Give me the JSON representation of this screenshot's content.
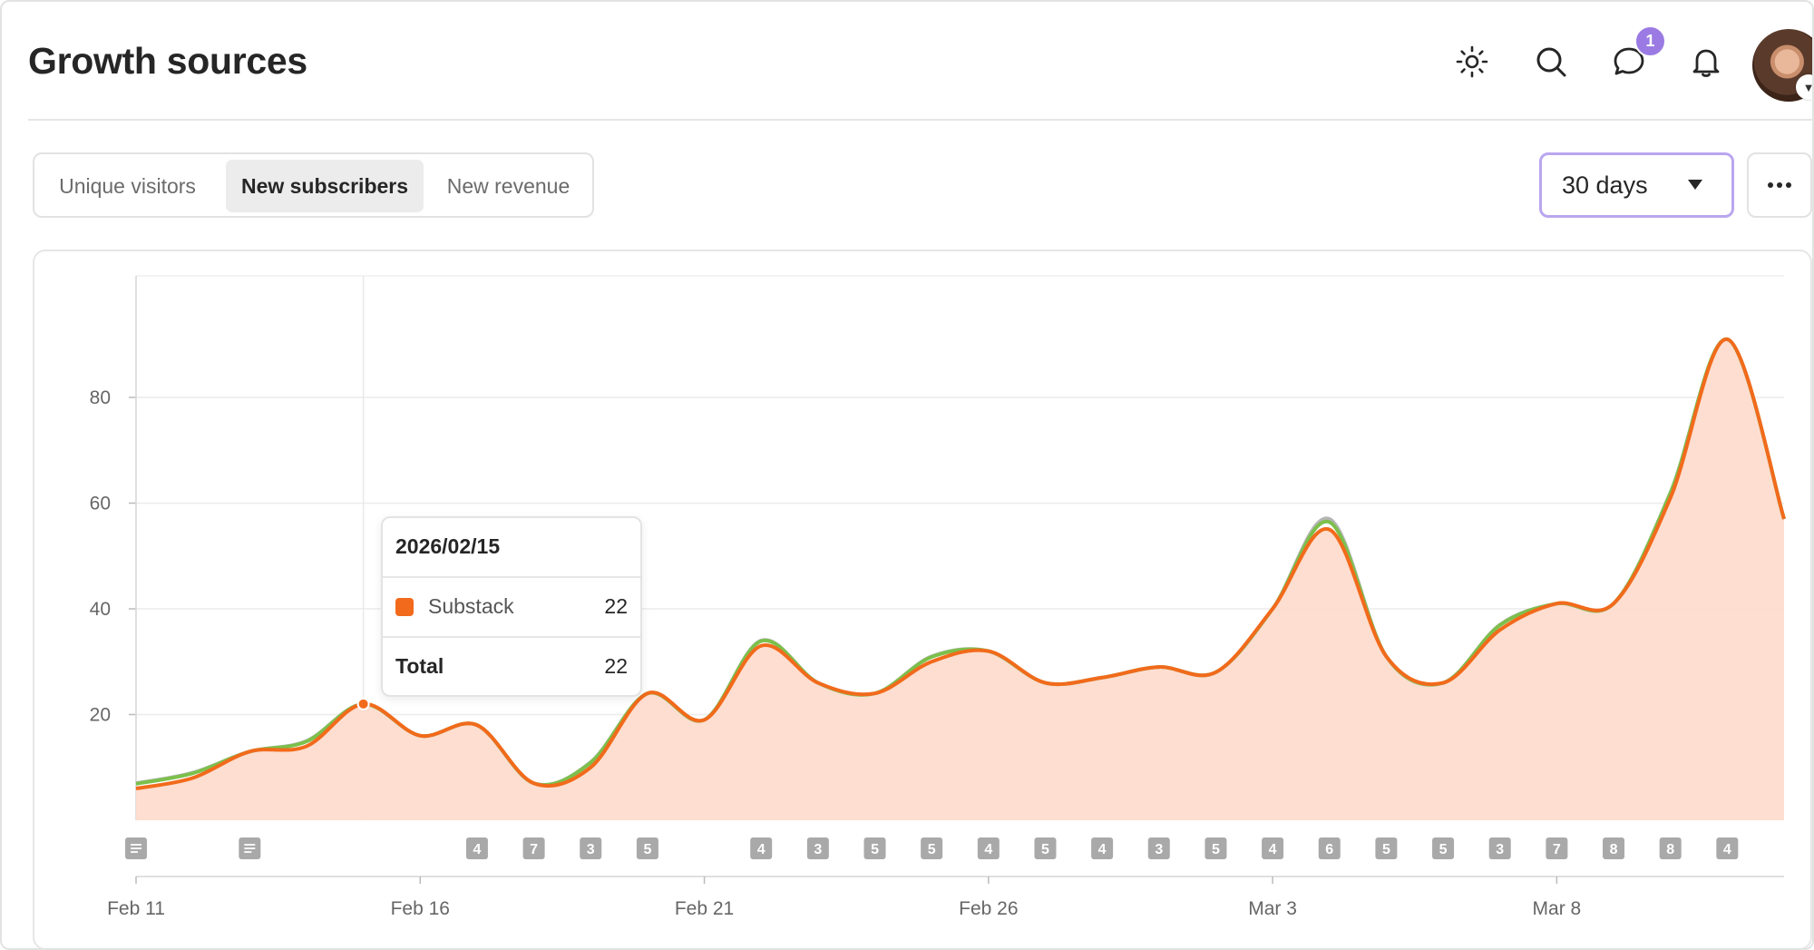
{
  "header": {
    "title": "Growth sources",
    "icons": [
      "sun-icon",
      "search-icon",
      "chat-icon",
      "bell-icon"
    ],
    "messages_badge": "1"
  },
  "tabs": [
    {
      "label": "Unique visitors",
      "active": false
    },
    {
      "label": "New subscribers",
      "active": true
    },
    {
      "label": "New revenue",
      "active": false
    }
  ],
  "range_select": {
    "value": "30 days"
  },
  "tooltip": {
    "date": "2026/02/15",
    "series_label": "Substack",
    "series_value": "22",
    "total_label": "Total",
    "total_value": "22"
  },
  "colors": {
    "substack": "#f26a1b",
    "area": "#fddccd",
    "other_green": "#7cc04b",
    "other_gray": "#b5b5b5",
    "accent": "#9b7be3"
  },
  "chart_data": {
    "type": "area",
    "x": [
      "Feb 11",
      "Feb 12",
      "Feb 13",
      "Feb 14",
      "Feb 15",
      "Feb 16",
      "Feb 17",
      "Feb 18",
      "Feb 19",
      "Feb 20",
      "Feb 21",
      "Feb 22",
      "Feb 23",
      "Feb 24",
      "Feb 25",
      "Feb 26",
      "Feb 27",
      "Feb 28",
      "Mar 1",
      "Mar 2",
      "Mar 3",
      "Mar 4",
      "Mar 5",
      "Mar 6",
      "Mar 7",
      "Mar 8",
      "Mar 9",
      "Mar 10",
      "Mar 11",
      "Mar 12"
    ],
    "series": [
      {
        "name": "Substack",
        "values": [
          6,
          8,
          13,
          14,
          22,
          16,
          18,
          7,
          10,
          24,
          19,
          33,
          26,
          24,
          30,
          32,
          26,
          27,
          29,
          28,
          40,
          55,
          31,
          26,
          36,
          41,
          41,
          61,
          91,
          57
        ]
      }
    ],
    "total_values": [
      7,
      9,
      13,
      15,
      22,
      16,
      18,
      7,
      11,
      24,
      19,
      34,
      26,
      24,
      31,
      32,
      26,
      27,
      29,
      28,
      40,
      57,
      31,
      26,
      37,
      41,
      41,
      62,
      91,
      57
    ],
    "xticks": [
      "Feb 11",
      "Feb 16",
      "Feb 21",
      "Feb 26",
      "Mar 3",
      "Mar 8"
    ],
    "yticks": [
      20,
      40,
      60,
      80
    ],
    "ylim": [
      0,
      103
    ],
    "grid": true,
    "markers": [
      {
        "date": "Feb 11",
        "label": "",
        "icon": "post-icon"
      },
      {
        "date": "Feb 13",
        "label": "",
        "icon": "post-icon"
      },
      {
        "date": "Feb 17",
        "label": "4"
      },
      {
        "date": "Feb 18",
        "label": "7"
      },
      {
        "date": "Feb 19",
        "label": "3"
      },
      {
        "date": "Feb 20",
        "label": "5"
      },
      {
        "date": "Feb 22",
        "label": "4"
      },
      {
        "date": "Feb 23",
        "label": "3"
      },
      {
        "date": "Feb 24",
        "label": "5"
      },
      {
        "date": "Feb 25",
        "label": "5"
      },
      {
        "date": "Feb 26",
        "label": "4"
      },
      {
        "date": "Feb 27",
        "label": "5"
      },
      {
        "date": "Feb 28",
        "label": "4"
      },
      {
        "date": "Mar 1",
        "label": "3"
      },
      {
        "date": "Mar 2",
        "label": "5"
      },
      {
        "date": "Mar 3",
        "label": "4"
      },
      {
        "date": "Mar 4",
        "label": "6"
      },
      {
        "date": "Mar 5",
        "label": "5"
      },
      {
        "date": "Mar 6",
        "label": "5"
      },
      {
        "date": "Mar 7",
        "label": "3"
      },
      {
        "date": "Mar 8",
        "label": "7"
      },
      {
        "date": "Mar 9",
        "label": "8"
      },
      {
        "date": "Mar 10",
        "label": "8"
      },
      {
        "date": "Mar 11",
        "label": "4"
      }
    ],
    "highlight": {
      "date": "Feb 15"
    }
  }
}
